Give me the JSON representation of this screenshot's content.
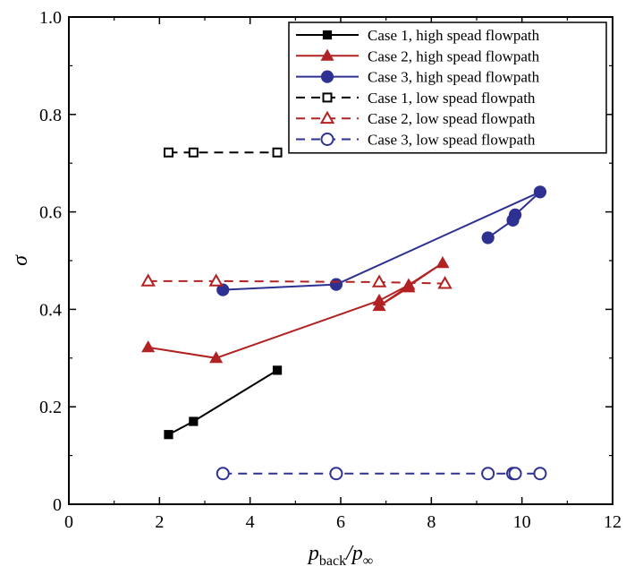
{
  "chart_data": {
    "type": "line",
    "title": "",
    "xlabel_main": "p",
    "xlabel_sub1": "back",
    "xlabel_sep": "/p",
    "xlabel_sub2": "∞",
    "ylabel": "σ",
    "xlim": [
      0,
      12
    ],
    "ylim": [
      0,
      1.0
    ],
    "xticks": [
      0,
      2,
      4,
      6,
      8,
      10,
      12
    ],
    "yticks": [
      0,
      0.2,
      0.4,
      0.6,
      0.8,
      1.0
    ],
    "xtick_labels": [
      "0",
      "2",
      "4",
      "6",
      "8",
      "10",
      "12"
    ],
    "ytick_labels": [
      "0",
      "0.2",
      "0.4",
      "0.6",
      "0.8",
      "1.0"
    ],
    "grid": false,
    "legend_position": "top-right",
    "series": [
      {
        "name": "Case 1, high spead flowpath",
        "color": "#000000",
        "dash": "solid",
        "marker": "square",
        "filled": true,
        "x": [
          2.2,
          2.75,
          4.6
        ],
        "y": [
          0.143,
          0.17,
          0.275
        ]
      },
      {
        "name": "Case 2, high spead flowpath",
        "color": "#b22222",
        "dash": "solid",
        "marker": "triangle",
        "filled": true,
        "x": [
          1.75,
          3.25,
          6.85,
          7.5,
          8.25,
          6.85,
          7.5
        ],
        "y": [
          0.322,
          0.3,
          0.418,
          0.45,
          0.495,
          0.407,
          0.445
        ]
      },
      {
        "name": "Case 3, high spead flowpath",
        "color": "#2e3192",
        "dash": "solid",
        "marker": "circle",
        "filled": true,
        "x": [
          3.4,
          5.9,
          10.4,
          9.85,
          9.8,
          9.25
        ],
        "y": [
          0.44,
          0.451,
          0.641,
          0.594,
          0.583,
          0.547
        ]
      },
      {
        "name": "Case 1, low spead flowpath",
        "color": "#000000",
        "dash": "dashed",
        "marker": "square",
        "filled": false,
        "x": [
          2.2,
          2.75,
          4.6
        ],
        "y": [
          0.722,
          0.722,
          0.722
        ]
      },
      {
        "name": "Case 2, low spead flowpath",
        "color": "#b22222",
        "dash": "dashed",
        "marker": "triangle",
        "filled": false,
        "x": [
          1.75,
          3.25,
          6.85,
          8.3
        ],
        "y": [
          0.458,
          0.458,
          0.456,
          0.453
        ]
      },
      {
        "name": "Case 3, low spead flowpath",
        "color": "#2e3192",
        "dash": "dashed",
        "marker": "circle",
        "filled": false,
        "x": [
          3.4,
          5.9,
          9.25,
          9.8,
          9.85,
          10.4
        ],
        "y": [
          0.063,
          0.063,
          0.063,
          0.063,
          0.063,
          0.063
        ]
      }
    ]
  }
}
